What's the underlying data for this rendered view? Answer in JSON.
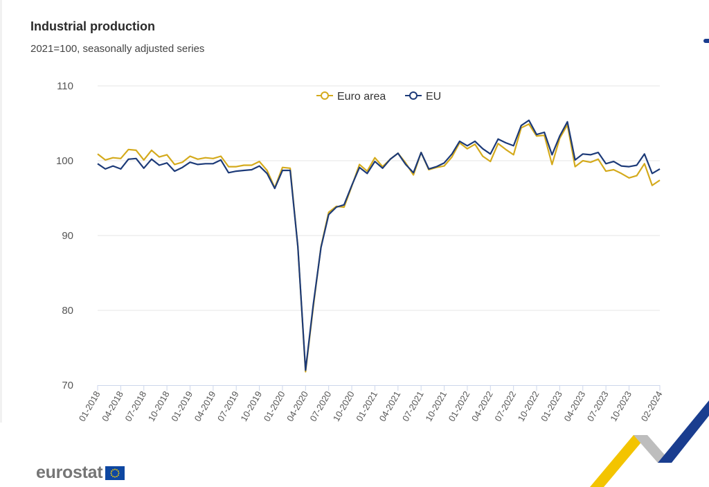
{
  "title": "Industrial production",
  "subtitle": "2021=100, seasonally adjusted series",
  "logo": {
    "text": "eurostat",
    "icon": "eu-flag-icon"
  },
  "colors": {
    "euro_area": "#d4aa1c",
    "eu": "#1c3a78",
    "grid": "#e6e6e6",
    "axis": "#ccd6eb"
  },
  "chart_data": {
    "type": "line",
    "title": "Industrial production",
    "subtitle": "2021=100, seasonally adjusted series",
    "xlabel": "",
    "ylabel": "",
    "ylim": [
      70,
      110
    ],
    "yticks": [
      70,
      80,
      90,
      100,
      110
    ],
    "grid": true,
    "legend": "top-center",
    "x": [
      "01-2018",
      "02-2018",
      "03-2018",
      "04-2018",
      "05-2018",
      "06-2018",
      "07-2018",
      "08-2018",
      "09-2018",
      "10-2018",
      "11-2018",
      "12-2018",
      "01-2019",
      "02-2019",
      "03-2019",
      "04-2019",
      "05-2019",
      "06-2019",
      "07-2019",
      "08-2019",
      "09-2019",
      "10-2019",
      "11-2019",
      "12-2019",
      "01-2020",
      "02-2020",
      "03-2020",
      "04-2020",
      "05-2020",
      "06-2020",
      "07-2020",
      "08-2020",
      "09-2020",
      "10-2020",
      "11-2020",
      "12-2020",
      "01-2021",
      "02-2021",
      "03-2021",
      "04-2021",
      "05-2021",
      "06-2021",
      "07-2021",
      "08-2021",
      "09-2021",
      "10-2021",
      "11-2021",
      "12-2021",
      "01-2022",
      "02-2022",
      "03-2022",
      "04-2022",
      "05-2022",
      "06-2022",
      "07-2022",
      "08-2022",
      "09-2022",
      "10-2022",
      "11-2022",
      "12-2022",
      "01-2023",
      "02-2023",
      "03-2023",
      "04-2023",
      "05-2023",
      "06-2023",
      "07-2023",
      "08-2023",
      "09-2023",
      "10-2023",
      "11-2023",
      "12-2023",
      "01-2024",
      "02-2024"
    ],
    "xtick_labels": [
      "01-2018",
      "04-2018",
      "07-2018",
      "10-2018",
      "01-2019",
      "04-2019",
      "07-2019",
      "10-2019",
      "01-2020",
      "04-2020",
      "07-2020",
      "10-2020",
      "01-2021",
      "04-2021",
      "07-2021",
      "10-2021",
      "01-2022",
      "04-2022",
      "07-2022",
      "10-2022",
      "01-2023",
      "04-2023",
      "07-2023",
      "10-2023",
      "02-2024"
    ],
    "series": [
      {
        "name": "Euro area",
        "color": "#d4aa1c",
        "values": [
          100.9,
          100.1,
          100.4,
          100.3,
          101.5,
          101.4,
          100.1,
          101.4,
          100.5,
          100.8,
          99.5,
          99.8,
          100.6,
          100.2,
          100.4,
          100.3,
          100.6,
          99.2,
          99.2,
          99.4,
          99.4,
          99.9,
          98.7,
          96.4,
          99.1,
          99.0,
          88.5,
          71.8,
          80.5,
          88.5,
          93.1,
          93.9,
          93.8,
          96.6,
          99.5,
          98.6,
          100.4,
          99.2,
          100.2,
          101.0,
          99.7,
          98.1,
          101.1,
          98.8,
          99.1,
          99.3,
          100.5,
          102.4,
          101.6,
          102.2,
          100.6,
          99.9,
          102.3,
          101.5,
          100.8,
          104.4,
          104.9,
          103.3,
          103.4,
          99.5,
          103.0,
          104.8,
          99.2,
          100.0,
          99.8,
          100.2,
          98.6,
          98.8,
          98.3,
          97.7,
          98.0,
          99.6,
          96.7,
          97.4
        ]
      },
      {
        "name": "EU",
        "color": "#1c3a78",
        "values": [
          99.6,
          98.9,
          99.3,
          98.9,
          100.2,
          100.3,
          99.0,
          100.2,
          99.4,
          99.7,
          98.6,
          99.1,
          99.8,
          99.5,
          99.6,
          99.6,
          100.1,
          98.4,
          98.6,
          98.7,
          98.8,
          99.3,
          98.3,
          96.3,
          98.7,
          98.7,
          88.5,
          72.0,
          80.8,
          88.4,
          92.8,
          93.8,
          94.1,
          96.7,
          99.1,
          98.3,
          99.9,
          99.0,
          100.2,
          101.0,
          99.5,
          98.4,
          101.1,
          98.9,
          99.2,
          99.7,
          100.9,
          102.6,
          102.0,
          102.6,
          101.6,
          100.9,
          102.9,
          102.4,
          102.0,
          104.7,
          105.4,
          103.5,
          103.8,
          100.8,
          103.3,
          105.2,
          100.1,
          100.9,
          100.8,
          101.1,
          99.6,
          99.9,
          99.3,
          99.2,
          99.4,
          100.9,
          98.3,
          98.9
        ]
      }
    ]
  }
}
